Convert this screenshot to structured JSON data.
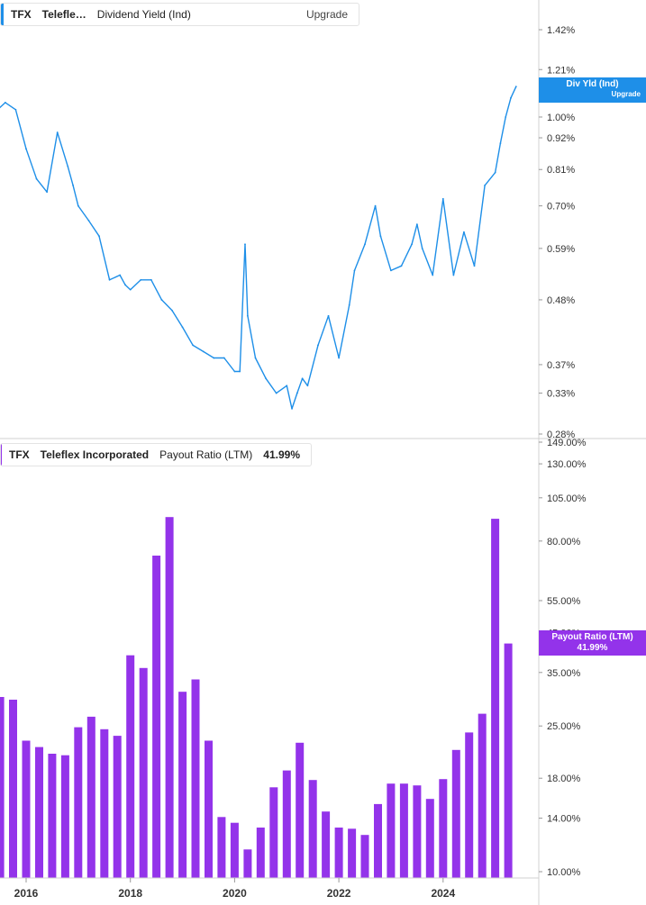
{
  "colors": {
    "yield": "#1e8fe8",
    "payout": "#9333ea",
    "axis_text": "#333333",
    "grid": "#d0d0d0"
  },
  "legend_top": {
    "ticker": "TFX",
    "name": "Telefle…",
    "metric": "Dividend Yield (Ind)",
    "action": "Upgrade"
  },
  "legend_bottom": {
    "ticker": "TFX",
    "name": "Teleflex Incorporated",
    "metric": "Payout Ratio (LTM)",
    "value": "41.99%"
  },
  "tag_top": {
    "label": "Div Yld (Ind)",
    "sub": "Upgrade"
  },
  "tag_bottom": {
    "label": "Payout Ratio (LTM)",
    "value": "41.99%"
  },
  "chart_data": [
    {
      "type": "line",
      "title": "",
      "scale": "log",
      "ylim": [
        0.28,
        1.42
      ],
      "y_ticks": [
        "1.42%",
        "1.21%",
        "1.00%",
        "0.92%",
        "0.81%",
        "0.70%",
        "0.59%",
        "0.48%",
        "0.37%",
        "0.33%",
        "0.28%"
      ],
      "y_tick_values": [
        1.42,
        1.21,
        1.0,
        0.92,
        0.81,
        0.7,
        0.59,
        0.48,
        0.37,
        0.33,
        0.28
      ],
      "series": [
        {
          "x": [
            2015.4,
            2015.6,
            2015.8,
            2016.0,
            2016.2,
            2016.4,
            2016.6,
            2016.8,
            2016.9,
            2017.0,
            2017.2,
            2017.4,
            2017.6,
            2017.8,
            2017.9,
            2018.0,
            2018.2,
            2018.4,
            2018.6,
            2018.8,
            2019.0,
            2019.2,
            2019.4,
            2019.6,
            2019.8,
            2020.0,
            2020.1,
            2020.2,
            2020.25,
            2020.4,
            2020.6,
            2020.8,
            2021.0,
            2021.1,
            2021.2,
            2021.3,
            2021.4,
            2021.6,
            2021.8,
            2022.0,
            2022.2,
            2022.3,
            2022.5,
            2022.7,
            2022.8,
            2023.0,
            2023.2,
            2023.4,
            2023.5,
            2023.6,
            2023.8,
            2024.0,
            2024.2,
            2024.4,
            2024.6,
            2024.8,
            2025.0,
            2025.1,
            2025.2,
            2025.3,
            2025.4
          ],
          "values": [
            1.02,
            1.06,
            1.03,
            0.88,
            0.78,
            0.74,
            0.94,
            0.82,
            0.76,
            0.7,
            0.66,
            0.62,
            0.52,
            0.53,
            0.51,
            0.5,
            0.52,
            0.52,
            0.48,
            0.46,
            0.43,
            0.4,
            0.39,
            0.38,
            0.38,
            0.36,
            0.36,
            0.6,
            0.45,
            0.38,
            0.35,
            0.33,
            0.34,
            0.31,
            0.33,
            0.35,
            0.34,
            0.4,
            0.45,
            0.38,
            0.47,
            0.54,
            0.6,
            0.7,
            0.62,
            0.54,
            0.55,
            0.6,
            0.65,
            0.59,
            0.53,
            0.72,
            0.53,
            0.63,
            0.55,
            0.76,
            0.8,
            0.9,
            1.0,
            1.08,
            1.13
          ]
        }
      ]
    },
    {
      "type": "bar",
      "title": "",
      "scale": "log",
      "ylim": [
        10,
        149
      ],
      "y_ticks": [
        "149.00%",
        "130.00%",
        "105.00%",
        "80.00%",
        "55.00%",
        "45.00%",
        "35.00%",
        "25.00%",
        "18.00%",
        "14.00%",
        "10.00%"
      ],
      "y_tick_values": [
        149,
        130,
        105,
        80,
        55,
        45,
        35,
        25,
        18,
        14,
        10
      ],
      "x_ticks": [
        "2016",
        "2018",
        "2020",
        "2022",
        "2024"
      ],
      "x_tick_values": [
        2016,
        2018,
        2020,
        2022,
        2024
      ],
      "series": [
        {
          "x": [
            2015.5,
            2015.75,
            2016.0,
            2016.25,
            2016.5,
            2016.75,
            2017.0,
            2017.25,
            2017.5,
            2017.75,
            2018.0,
            2018.25,
            2018.5,
            2018.75,
            2019.0,
            2019.25,
            2019.5,
            2019.75,
            2020.0,
            2020.25,
            2020.5,
            2020.75,
            2021.0,
            2021.25,
            2021.5,
            2021.75,
            2022.0,
            2022.25,
            2022.5,
            2022.75,
            2023.0,
            2023.25,
            2023.5,
            2023.75,
            2024.0,
            2024.25,
            2024.5,
            2024.75,
            2025.0,
            2025.25
          ],
          "values": [
            30,
            29.5,
            22.8,
            21.9,
            21,
            20.8,
            24.8,
            26.5,
            24.5,
            23.5,
            39,
            36,
            73,
            93,
            31,
            33.5,
            22.8,
            14.1,
            13.6,
            11.5,
            13.2,
            17,
            18.9,
            22.5,
            17.8,
            14.6,
            13.2,
            13.1,
            12.6,
            15.3,
            17.4,
            17.4,
            17.2,
            15.8,
            17.9,
            21.5,
            24,
            27,
            92,
            41.99
          ]
        }
      ]
    }
  ]
}
